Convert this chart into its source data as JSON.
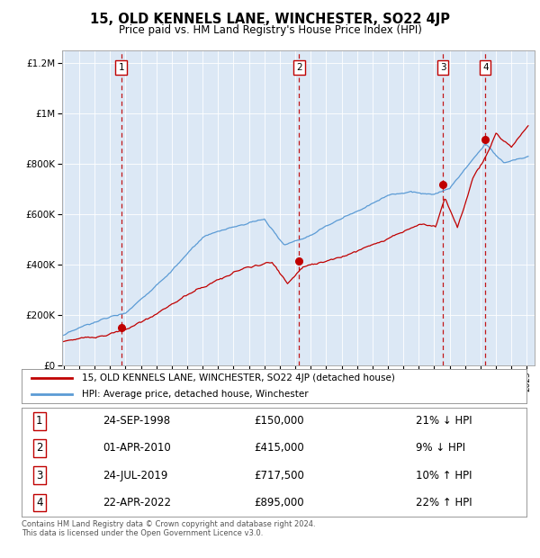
{
  "title": "15, OLD KENNELS LANE, WINCHESTER, SO22 4JP",
  "subtitle": "Price paid vs. HM Land Registry's House Price Index (HPI)",
  "plot_bg_color": "#dce8f5",
  "sale_dates_num": [
    1998.73,
    2010.25,
    2019.56,
    2022.31
  ],
  "sale_prices": [
    150000,
    415000,
    717500,
    895000
  ],
  "sale_labels": [
    "1",
    "2",
    "3",
    "4"
  ],
  "legend_entries": [
    "15, OLD KENNELS LANE, WINCHESTER, SO22 4JP (detached house)",
    "HPI: Average price, detached house, Winchester"
  ],
  "table_data": [
    [
      "1",
      "24-SEP-1998",
      "£150,000",
      "21% ↓ HPI"
    ],
    [
      "2",
      "01-APR-2010",
      "£415,000",
      "9% ↓ HPI"
    ],
    [
      "3",
      "24-JUL-2019",
      "£717,500",
      "10% ↑ HPI"
    ],
    [
      "4",
      "22-APR-2022",
      "£895,000",
      "22% ↑ HPI"
    ]
  ],
  "footer": "Contains HM Land Registry data © Crown copyright and database right 2024.\nThis data is licensed under the Open Government Licence v3.0.",
  "hpi_color": "#5b9bd5",
  "price_color": "#c00000",
  "vline_color": "#c00000",
  "ylim": [
    0,
    1250000
  ],
  "xlim_start": 1994.9,
  "xlim_end": 2025.5
}
